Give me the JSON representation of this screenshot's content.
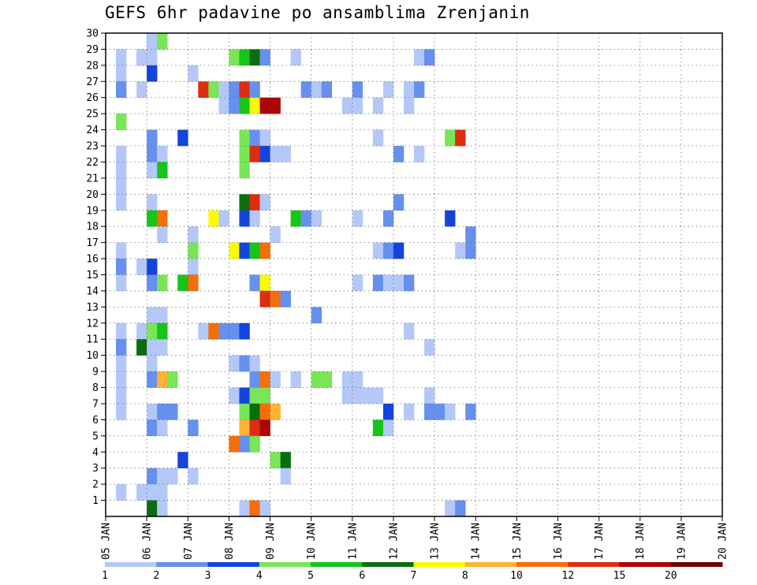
{
  "chart_data": {
    "type": "heatmap",
    "title": "GEFS 6hr padavine po ansamblima Zrenjanin",
    "x_tick_labels": [
      "05 JAN",
      "06 JAN",
      "07 JAN",
      "08 JAN",
      "09 JAN",
      "10 JAN",
      "11 JAN",
      "12 JAN",
      "13 JAN",
      "14 JAN",
      "15 JAN",
      "16 JAN",
      "17 JAN",
      "18 JAN",
      "19 JAN",
      "20 JAN"
    ],
    "x_range_days": [
      0,
      15
    ],
    "y_tick_labels": [
      "1",
      "2",
      "3",
      "4",
      "5",
      "6",
      "7",
      "8",
      "9",
      "10",
      "11",
      "12",
      "13",
      "14",
      "15",
      "16",
      "17",
      "18",
      "19",
      "20",
      "21",
      "22",
      "23",
      "24",
      "25",
      "26",
      "27",
      "28",
      "29",
      "30"
    ],
    "y_range": [
      0,
      30
    ],
    "grid": true,
    "colorbar": {
      "labels": [
        "1",
        "2",
        "3",
        "4",
        "5",
        "6",
        "7",
        "8",
        "10",
        "12",
        "15",
        "20"
      ],
      "colors": [
        "#b4c8f8",
        "#6690ee",
        "#1444dc",
        "#78e656",
        "#16c41a",
        "#0a6e0e",
        "#fafa00",
        "#fcb432",
        "#f46e0a",
        "#de2c10",
        "#aa0404",
        "#700000"
      ]
    },
    "cells": [
      [
        0,
        30,
        4,
        2
      ],
      [
        0,
        30,
        4,
        1
      ],
      [
        0,
        30,
        5,
        4
      ],
      [
        0,
        29,
        3,
        2
      ],
      [
        0,
        29,
        1,
        1
      ],
      [
        0,
        29,
        3,
        1
      ],
      [
        0,
        29,
        4,
        1
      ],
      [
        0,
        29,
        12,
        4
      ],
      [
        0,
        29,
        13,
        5
      ],
      [
        0,
        29,
        14,
        6
      ],
      [
        0,
        29,
        15,
        2
      ],
      [
        0,
        29,
        18,
        1
      ],
      [
        0,
        29,
        30,
        1
      ],
      [
        0,
        29,
        31,
        2
      ],
      [
        0,
        28,
        1,
        1
      ],
      [
        0,
        28,
        4,
        3
      ],
      [
        0,
        28,
        8,
        1
      ],
      [
        0,
        27,
        1,
        2
      ],
      [
        0,
        27,
        3,
        1
      ],
      [
        0,
        27,
        9,
        10
      ],
      [
        0,
        27,
        10,
        4
      ],
      [
        0,
        27,
        11,
        1
      ],
      [
        0,
        27,
        12,
        2
      ],
      [
        0,
        27,
        13,
        10
      ],
      [
        0,
        27,
        14,
        2
      ],
      [
        0,
        27,
        19,
        2
      ],
      [
        0,
        27,
        20,
        1
      ],
      [
        0,
        27,
        21,
        2
      ],
      [
        0,
        27,
        24,
        2
      ],
      [
        0,
        27,
        27,
        1
      ],
      [
        0,
        27,
        29,
        1
      ],
      [
        0,
        27,
        30,
        2
      ],
      [
        0,
        26,
        11,
        1
      ],
      [
        0,
        26,
        12,
        2
      ],
      [
        0,
        26,
        13,
        5
      ],
      [
        0,
        26,
        14,
        7
      ],
      [
        0,
        26,
        15,
        11
      ],
      [
        0,
        26,
        16,
        11
      ],
      [
        0,
        26,
        23,
        1
      ],
      [
        0,
        26,
        24,
        1
      ],
      [
        0,
        26,
        26,
        1
      ],
      [
        0,
        26,
        29,
        1
      ],
      [
        0,
        25,
        1,
        4
      ],
      [
        0,
        24,
        4,
        2
      ],
      [
        0,
        24,
        7,
        3
      ],
      [
        0,
        24,
        13,
        4
      ],
      [
        0,
        24,
        14,
        2
      ],
      [
        0,
        24,
        15,
        1
      ],
      [
        0,
        24,
        26,
        1
      ],
      [
        0,
        24,
        33,
        4
      ],
      [
        0,
        24,
        34,
        10
      ],
      [
        0,
        23,
        1,
        1
      ],
      [
        0,
        23,
        4,
        2
      ],
      [
        0,
        23,
        5,
        1
      ],
      [
        0,
        23,
        13,
        4
      ],
      [
        0,
        23,
        14,
        10
      ],
      [
        0,
        23,
        15,
        3
      ],
      [
        0,
        23,
        16,
        1
      ],
      [
        0,
        23,
        17,
        1
      ],
      [
        0,
        23,
        28,
        2
      ],
      [
        0,
        23,
        30,
        1
      ],
      [
        0,
        22,
        1,
        1
      ],
      [
        0,
        22,
        4,
        1
      ],
      [
        0,
        22,
        5,
        5
      ],
      [
        0,
        22,
        13,
        4
      ],
      [
        0,
        21,
        1,
        1
      ],
      [
        0,
        20,
        1,
        1
      ],
      [
        0,
        20,
        4,
        1
      ],
      [
        0,
        20,
        13,
        6
      ],
      [
        0,
        20,
        14,
        10
      ],
      [
        0,
        20,
        15,
        1
      ],
      [
        0,
        20,
        28,
        2
      ],
      [
        0,
        19,
        4,
        5
      ],
      [
        0,
        19,
        5,
        9
      ],
      [
        0,
        19,
        10,
        7
      ],
      [
        0,
        19,
        11,
        1
      ],
      [
        0,
        19,
        13,
        3
      ],
      [
        0,
        19,
        14,
        1
      ],
      [
        0,
        19,
        18,
        5
      ],
      [
        0,
        19,
        19,
        2
      ],
      [
        0,
        19,
        20,
        1
      ],
      [
        0,
        19,
        24,
        1
      ],
      [
        0,
        19,
        27,
        2
      ],
      [
        0,
        19,
        33,
        3
      ],
      [
        0,
        18,
        5,
        1
      ],
      [
        0,
        18,
        8,
        1
      ],
      [
        0,
        18,
        16,
        1
      ],
      [
        0,
        18,
        35,
        2
      ],
      [
        0,
        17,
        1,
        1
      ],
      [
        0,
        17,
        8,
        4
      ],
      [
        0,
        17,
        12,
        7
      ],
      [
        0,
        17,
        13,
        3
      ],
      [
        0,
        17,
        14,
        5
      ],
      [
        0,
        17,
        15,
        9
      ],
      [
        0,
        17,
        26,
        1
      ],
      [
        0,
        17,
        27,
        2
      ],
      [
        0,
        17,
        28,
        3
      ],
      [
        0,
        17,
        34,
        1
      ],
      [
        0,
        17,
        35,
        2
      ],
      [
        0,
        16,
        1,
        2
      ],
      [
        0,
        16,
        3,
        1
      ],
      [
        0,
        16,
        4,
        3
      ],
      [
        0,
        16,
        8,
        1
      ],
      [
        0,
        15,
        1,
        1
      ],
      [
        0,
        15,
        4,
        2
      ],
      [
        0,
        15,
        5,
        4
      ],
      [
        0,
        15,
        7,
        5
      ],
      [
        0,
        15,
        8,
        9
      ],
      [
        0,
        15,
        14,
        2
      ],
      [
        0,
        15,
        15,
        7
      ],
      [
        0,
        15,
        24,
        1
      ],
      [
        0,
        15,
        26,
        2
      ],
      [
        0,
        15,
        27,
        1
      ],
      [
        0,
        15,
        28,
        1
      ],
      [
        0,
        15,
        29,
        2
      ],
      [
        0,
        14,
        15,
        10
      ],
      [
        0,
        14,
        16,
        9
      ],
      [
        0,
        14,
        17,
        2
      ],
      [
        0,
        13,
        4,
        1
      ],
      [
        0,
        13,
        5,
        1
      ],
      [
        0,
        13,
        20,
        2
      ],
      [
        0,
        12,
        1,
        1
      ],
      [
        0,
        12,
        3,
        1
      ],
      [
        0,
        12,
        4,
        4
      ],
      [
        0,
        12,
        5,
        5
      ],
      [
        0,
        12,
        9,
        1
      ],
      [
        0,
        12,
        10,
        9
      ],
      [
        0,
        12,
        11,
        2
      ],
      [
        0,
        12,
        12,
        2
      ],
      [
        0,
        12,
        13,
        3
      ],
      [
        0,
        12,
        29,
        1
      ],
      [
        0,
        11,
        1,
        2
      ],
      [
        0,
        11,
        3,
        6
      ],
      [
        0,
        11,
        4,
        1
      ],
      [
        0,
        11,
        5,
        1
      ],
      [
        0,
        11,
        31,
        1
      ],
      [
        0,
        10,
        1,
        1
      ],
      [
        0,
        10,
        4,
        1
      ],
      [
        0,
        10,
        12,
        1
      ],
      [
        0,
        10,
        13,
        2
      ],
      [
        0,
        10,
        14,
        1
      ],
      [
        0,
        9,
        1,
        1
      ],
      [
        0,
        9,
        4,
        2
      ],
      [
        0,
        9,
        5,
        8
      ],
      [
        0,
        9,
        6,
        4
      ],
      [
        0,
        9,
        14,
        2
      ],
      [
        0,
        9,
        15,
        9
      ],
      [
        0,
        9,
        16,
        1
      ],
      [
        0,
        9,
        18,
        1
      ],
      [
        0,
        9,
        20,
        4
      ],
      [
        0,
        9,
        21,
        4
      ],
      [
        0,
        9,
        23,
        1
      ],
      [
        0,
        9,
        24,
        1
      ],
      [
        0,
        8,
        1,
        1
      ],
      [
        0,
        8,
        12,
        1
      ],
      [
        0,
        8,
        13,
        3
      ],
      [
        0,
        8,
        14,
        4
      ],
      [
        0,
        8,
        15,
        4
      ],
      [
        0,
        8,
        23,
        1
      ],
      [
        0,
        8,
        24,
        1
      ],
      [
        0,
        8,
        25,
        1
      ],
      [
        0,
        8,
        26,
        1
      ],
      [
        0,
        8,
        31,
        1
      ],
      [
        0,
        7,
        1,
        1
      ],
      [
        0,
        7,
        4,
        1
      ],
      [
        0,
        7,
        5,
        2
      ],
      [
        0,
        7,
        6,
        2
      ],
      [
        0,
        7,
        13,
        4
      ],
      [
        0,
        7,
        14,
        6
      ],
      [
        0,
        7,
        15,
        9
      ],
      [
        0,
        7,
        16,
        8
      ],
      [
        0,
        7,
        27,
        3
      ],
      [
        0,
        7,
        29,
        1
      ],
      [
        0,
        7,
        31,
        2
      ],
      [
        0,
        7,
        32,
        2
      ],
      [
        0,
        7,
        33,
        1
      ],
      [
        0,
        7,
        35,
        2
      ],
      [
        0,
        6,
        4,
        2
      ],
      [
        0,
        6,
        5,
        1
      ],
      [
        0,
        6,
        8,
        2
      ],
      [
        0,
        6,
        13,
        8
      ],
      [
        0,
        6,
        14,
        10
      ],
      [
        0,
        6,
        15,
        11
      ],
      [
        0,
        6,
        26,
        5
      ],
      [
        0,
        6,
        27,
        1
      ],
      [
        0,
        5,
        12,
        9
      ],
      [
        0,
        5,
        13,
        2
      ],
      [
        0,
        5,
        14,
        4
      ],
      [
        0,
        4,
        7,
        3
      ],
      [
        0,
        4,
        16,
        4
      ],
      [
        0,
        4,
        17,
        6
      ],
      [
        0,
        3,
        4,
        2
      ],
      [
        0,
        3,
        5,
        1
      ],
      [
        0,
        3,
        6,
        1
      ],
      [
        0,
        3,
        8,
        1
      ],
      [
        0,
        3,
        17,
        1
      ],
      [
        0,
        2,
        1,
        1
      ],
      [
        0,
        2,
        3,
        1
      ],
      [
        0,
        2,
        4,
        1
      ],
      [
        0,
        2,
        5,
        1
      ],
      [
        0,
        1,
        4,
        6
      ],
      [
        0,
        1,
        5,
        1
      ],
      [
        0,
        1,
        13,
        1
      ],
      [
        0,
        1,
        14,
        9
      ],
      [
        0,
        1,
        15,
        1
      ],
      [
        0,
        1,
        33,
        1
      ],
      [
        0,
        1,
        34,
        2
      ]
    ],
    "cells_format": "[unused, y_row_upper_index, x_6hr_slot (day*4), color_index]"
  }
}
